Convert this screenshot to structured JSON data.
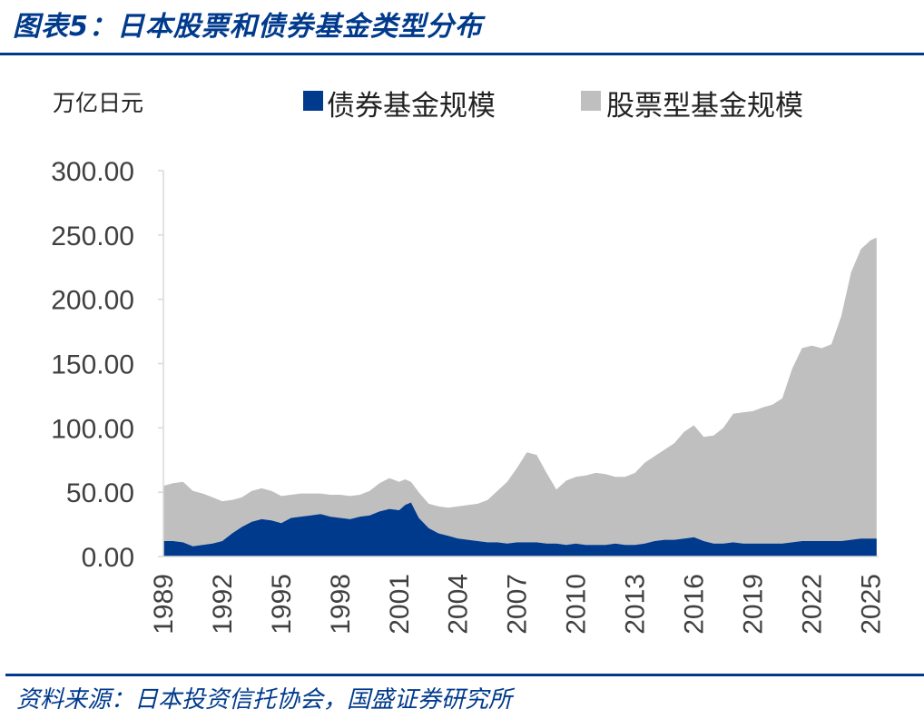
{
  "header": {
    "title": "图表5：日本股票和债券基金类型分布"
  },
  "footer": {
    "source": "资料来源：日本投资信托协会，国盛证券研究所"
  },
  "chart_data": {
    "type": "area",
    "stacked": true,
    "unit_label": "万亿日元",
    "ylim": [
      0,
      300
    ],
    "yticks": [
      "0.00",
      "50.00",
      "100.00",
      "150.00",
      "200.00",
      "250.00",
      "300.00"
    ],
    "xticks": [
      "1989",
      "1992",
      "1995",
      "1998",
      "2001",
      "2004",
      "2007",
      "2010",
      "2013",
      "2016",
      "2019",
      "2022",
      "2025"
    ],
    "xlim": [
      1989,
      2025.4
    ],
    "legend_position": "top",
    "grid": false,
    "series": [
      {
        "name": "债券基金规模",
        "color": "#003A8C",
        "x": [
          1989,
          1989.5,
          1990,
          1990.5,
          1991,
          1991.5,
          1992,
          1992.5,
          1993,
          1993.5,
          1994,
          1994.5,
          1995,
          1995.5,
          1996,
          1996.5,
          1997,
          1997.5,
          1998,
          1998.5,
          1999,
          1999.5,
          2000,
          2000.5,
          2001,
          2001.3,
          2001.6,
          2002,
          2002.5,
          2003,
          2003.5,
          2004,
          2004.5,
          2005,
          2005.5,
          2006,
          2006.5,
          2007,
          2007.5,
          2008,
          2008.5,
          2009,
          2009.5,
          2010,
          2010.5,
          2011,
          2011.5,
          2012,
          2012.5,
          2013,
          2013.5,
          2014,
          2014.5,
          2015,
          2015.5,
          2016,
          2016.5,
          2017,
          2017.5,
          2018,
          2018.5,
          2019,
          2019.5,
          2020,
          2020.5,
          2021,
          2021.5,
          2022,
          2022.5,
          2023,
          2023.5,
          2024,
          2024.5,
          2025,
          2025.3
        ],
        "values": [
          12,
          12,
          11,
          8,
          9,
          10,
          12,
          18,
          23,
          27,
          29,
          28,
          26,
          30,
          31,
          32,
          33,
          31,
          30,
          29,
          31,
          32,
          35,
          37,
          36,
          40,
          42,
          30,
          22,
          18,
          16,
          14,
          13,
          12,
          11,
          11,
          10,
          11,
          11,
          11,
          10,
          10,
          9,
          10,
          9,
          9,
          9,
          10,
          9,
          9,
          10,
          12,
          13,
          13,
          14,
          15,
          12,
          10,
          10,
          11,
          10,
          10,
          10,
          10,
          10,
          11,
          12,
          12,
          12,
          12,
          12,
          13,
          14,
          14,
          14
        ]
      },
      {
        "name": "股票型基金规模",
        "color": "#BFBFBF",
        "x": [
          1989,
          1989.5,
          1990,
          1990.5,
          1991,
          1991.5,
          1992,
          1992.5,
          1993,
          1993.5,
          1994,
          1994.5,
          1995,
          1995.5,
          1996,
          1996.5,
          1997,
          1997.5,
          1998,
          1998.5,
          1999,
          1999.5,
          2000,
          2000.5,
          2001,
          2001.3,
          2001.6,
          2002,
          2002.5,
          2003,
          2003.5,
          2004,
          2004.5,
          2005,
          2005.5,
          2006,
          2006.5,
          2007,
          2007.5,
          2008,
          2008.5,
          2009,
          2009.5,
          2010,
          2010.5,
          2011,
          2011.5,
          2012,
          2012.5,
          2013,
          2013.5,
          2014,
          2014.5,
          2015,
          2015.5,
          2016,
          2016.5,
          2017,
          2017.5,
          2018,
          2018.5,
          2019,
          2019.5,
          2020,
          2020.5,
          2021,
          2021.5,
          2022,
          2022.5,
          2023,
          2023.5,
          2024,
          2024.5,
          2025,
          2025.3
        ],
        "values": [
          43,
          45,
          47,
          43,
          40,
          36,
          31,
          26,
          23,
          24,
          24,
          23,
          21,
          18,
          18,
          17,
          16,
          17,
          18,
          18,
          17,
          19,
          22,
          24,
          22,
          20,
          16,
          20,
          19,
          21,
          22,
          25,
          27,
          29,
          33,
          40,
          48,
          58,
          70,
          68,
          55,
          42,
          50,
          52,
          54,
          56,
          55,
          52,
          53,
          56,
          63,
          66,
          70,
          75,
          83,
          87,
          81,
          84,
          90,
          100,
          102,
          103,
          106,
          108,
          113,
          135,
          150,
          152,
          150,
          153,
          175,
          208,
          225,
          232,
          234
        ]
      }
    ]
  }
}
